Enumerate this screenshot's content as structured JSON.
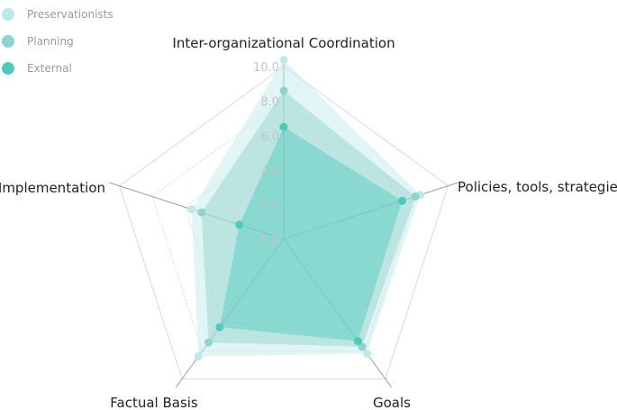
{
  "chart_data": {
    "type": "radar",
    "axes": [
      "Inter-organizational Coordination",
      "Policies, tools, strategies",
      "Goals",
      "Factual Basis",
      "Implementation"
    ],
    "rlim": [
      0,
      10
    ],
    "ticks": [
      "0.0",
      "2.0",
      "4.0",
      "6.0",
      "8.0",
      "10.0"
    ],
    "grid": true,
    "legend_position": "top-left",
    "series": [
      {
        "name": "Preservationists",
        "values": [
          10.4,
          8.3,
          8.2,
          8.4,
          5.6
        ],
        "color": "#bfe8e8"
      },
      {
        "name": "Planning",
        "values": [
          8.6,
          8.0,
          7.7,
          7.4,
          5.0
        ],
        "color": "#8fd3cd"
      },
      {
        "name": "External",
        "values": [
          6.5,
          7.2,
          7.3,
          6.3,
          2.7
        ],
        "color": "#4ec9bc"
      }
    ]
  }
}
